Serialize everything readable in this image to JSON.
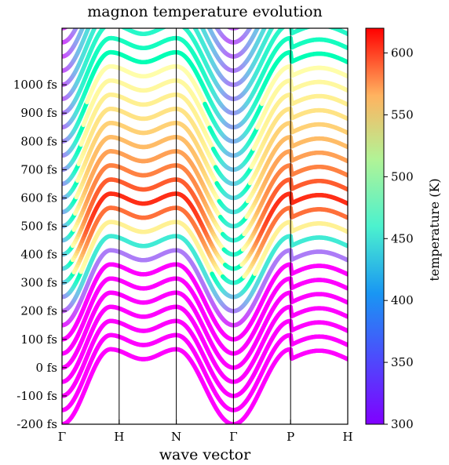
{
  "chart_data": {
    "type": "line",
    "title": "magnon temperature evolution",
    "xlabel": "wave vector",
    "ylabel": "",
    "x_ticks": [
      "Γ",
      "H",
      "N",
      "Γ",
      "P",
      "H"
    ],
    "y_ticks": [
      "-200 fs",
      "-100 fs",
      "0 fs",
      "100 fs",
      "200 fs",
      "300 fs",
      "400 fs",
      "500 fs",
      "600 fs",
      "700 fs",
      "800 fs",
      "900 fs",
      "1000 fs"
    ],
    "time_values_fs": [
      -200,
      -150,
      -100,
      -50,
      0,
      50,
      100,
      150,
      200,
      250,
      300,
      350,
      400,
      450,
      500,
      550,
      600,
      650,
      700,
      750,
      800,
      850,
      900,
      950,
      1000,
      1050,
      1100,
      1150,
      1200
    ],
    "ylim_fs": [
      -200,
      1200
    ],
    "colorbar": {
      "label": "temperature (K)",
      "min": 300,
      "max": 620,
      "ticks": [
        300,
        350,
        400,
        450,
        500,
        550,
        600
      ]
    },
    "dispersion_shape": {
      "segment_positions": [
        0,
        1,
        2,
        3,
        4,
        5
      ],
      "offset_fs_Gamma": 0,
      "offset_fs_HN_peak": 265,
      "offset_fs_HN_dip": 230,
      "offset_fs_P_bump": 240
    },
    "temperature_peak": {
      "time_fs": 325,
      "max_K": 615,
      "baseline_K": 300,
      "decay_K_at_1200fs": 380
    },
    "grid": false,
    "vertical_lines_at_ticks": true
  }
}
